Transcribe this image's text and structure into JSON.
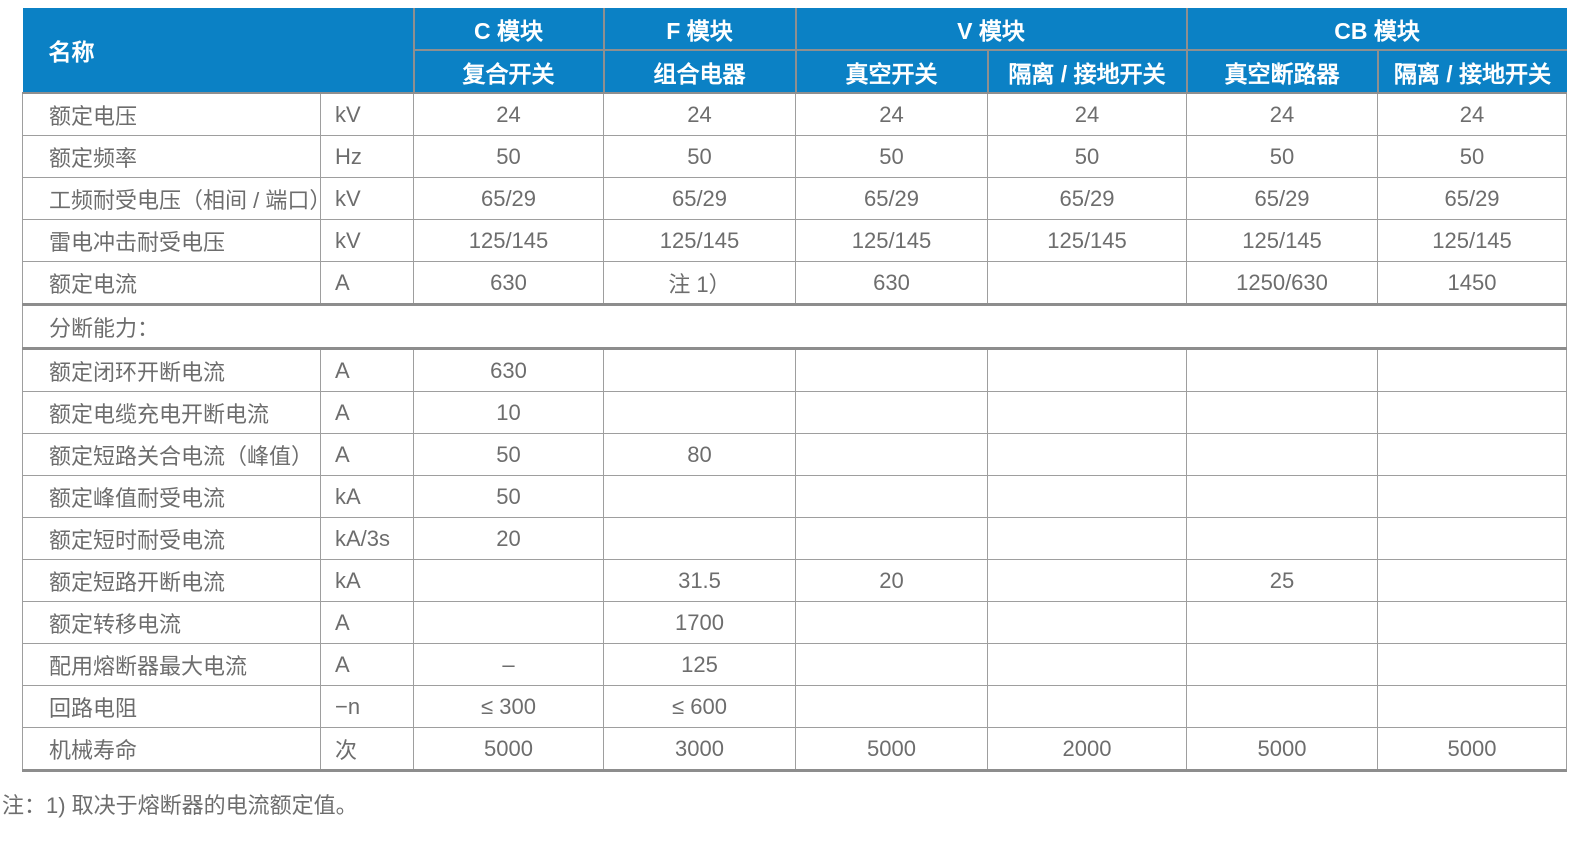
{
  "colors": {
    "header_bg": "#0b81c5",
    "header_text": "#ffffff",
    "body_text": "#6d6d6d",
    "grid_line": "#9e9e9e",
    "thick_line": "#8d8d8d"
  },
  "header": {
    "name_label": "名称",
    "groups": [
      {
        "title": "C 模块",
        "subs": [
          "复合开关"
        ]
      },
      {
        "title": "F 模块",
        "subs": [
          "组合电器"
        ]
      },
      {
        "title": "V 模块",
        "subs": [
          "真空开关",
          "隔离 / 接地开关"
        ]
      },
      {
        "title": "CB 模块",
        "subs": [
          "真空断路器",
          "隔离 / 接地开关"
        ]
      }
    ]
  },
  "table": {
    "rows": [
      {
        "label": "额定电压",
        "unit": "kV",
        "values": [
          "24",
          "24",
          "24",
          "24",
          "24",
          "24"
        ]
      },
      {
        "label": "额定频率",
        "unit": "Hz",
        "values": [
          "50",
          "50",
          "50",
          "50",
          "50",
          "50"
        ]
      },
      {
        "label": "工频耐受电压（相间 / 端口）",
        "unit": "kV",
        "values": [
          "65/29",
          "65/29",
          "65/29",
          "65/29",
          "65/29",
          "65/29"
        ]
      },
      {
        "label": "雷电冲击耐受电压",
        "unit": "kV",
        "values": [
          "125/145",
          "125/145",
          "125/145",
          "125/145",
          "125/145",
          "125/145"
        ]
      },
      {
        "label": "额定电流",
        "unit": "A",
        "values": [
          "630",
          "注 1）",
          "630",
          "",
          "1250/630",
          "1450"
        ]
      },
      {
        "section": "分断能力："
      },
      {
        "label": "额定闭环开断电流",
        "unit": "A",
        "values": [
          "630",
          "",
          "",
          "",
          "",
          ""
        ]
      },
      {
        "label": "额定电缆充电开断电流",
        "unit": "A",
        "values": [
          "10",
          "",
          "",
          "",
          "",
          ""
        ]
      },
      {
        "label": "额定短路关合电流（峰值）",
        "unit": "A",
        "values": [
          "50",
          "80",
          "",
          "",
          "",
          ""
        ]
      },
      {
        "label": "额定峰值耐受电流",
        "unit": "kA",
        "values": [
          "50",
          "",
          "",
          "",
          "",
          ""
        ]
      },
      {
        "label": "额定短时耐受电流",
        "unit": "kA/3s",
        "values": [
          "20",
          "",
          "",
          "",
          "",
          ""
        ]
      },
      {
        "label": "额定短路开断电流",
        "unit": "kA",
        "values": [
          "",
          "31.5",
          "20",
          "",
          "25",
          ""
        ]
      },
      {
        "label": "额定转移电流",
        "unit": "A",
        "values": [
          "",
          "1700",
          "",
          "",
          "",
          ""
        ]
      },
      {
        "label": "配用熔断器最大电流",
        "unit": "A",
        "values": [
          "–",
          "125",
          "",
          "",
          "",
          ""
        ]
      },
      {
        "label": "回路电阻",
        "unit": "−n",
        "values": [
          "≤ 300",
          "≤ 600",
          "",
          "",
          "",
          ""
        ]
      },
      {
        "label": "机械寿命",
        "unit": "次",
        "values": [
          "5000",
          "3000",
          "5000",
          "2000",
          "5000",
          "5000"
        ]
      }
    ]
  },
  "footnote": "注：1) 取决于熔断器的电流额定值。"
}
